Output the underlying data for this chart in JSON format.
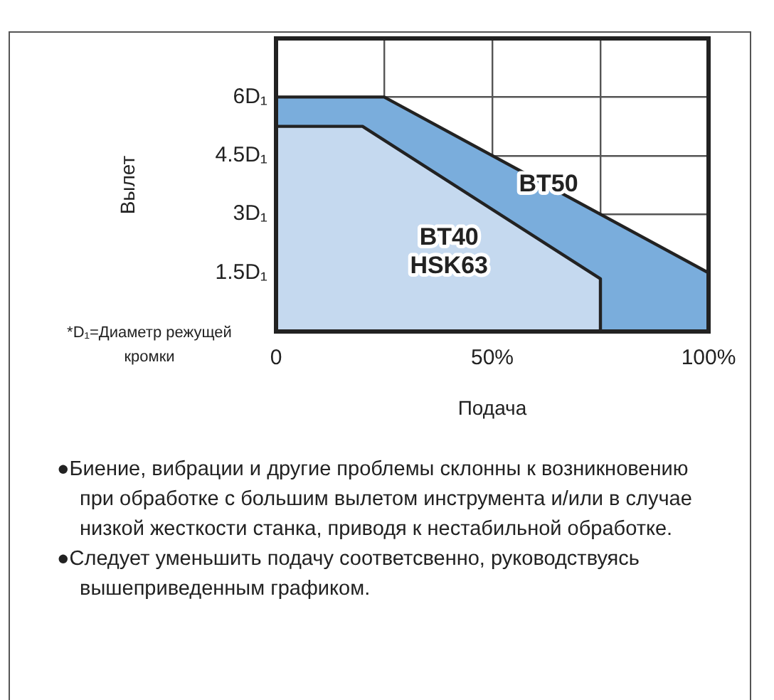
{
  "chart_data": {
    "type": "area",
    "xlabel": "Подача",
    "ylabel": "Вылет",
    "xlim": [
      0,
      100
    ],
    "xticks": [
      0,
      {
        "value": 25,
        "label": null
      },
      {
        "value": 50,
        "label": "50%"
      },
      {
        "value": 75,
        "label": null
      },
      {
        "value": 100,
        "label": "100%"
      }
    ],
    "ylim": [
      0,
      7.5
    ],
    "yticks": [
      {
        "value": 1.5,
        "label": "1.5D₁"
      },
      {
        "value": 3,
        "label": "3D₁"
      },
      {
        "value": 4.5,
        "label": "4.5D₁"
      },
      {
        "value": 6,
        "label": "6D₁"
      }
    ],
    "series": [
      {
        "name": "BT50",
        "color": "#7aaddc",
        "x": [
          0,
          25,
          100
        ],
        "values": [
          6,
          6,
          1.5
        ]
      },
      {
        "name": "BT40 HSK63",
        "color": "#c5d9ef",
        "x": [
          0,
          20,
          75,
          75
        ],
        "values": [
          5.25,
          5.25,
          1.35,
          0
        ]
      }
    ],
    "grid": true,
    "legend": false,
    "marker": "none",
    "annotations": [
      "*D₁=Диаметр режущей кромки",
      "●Биение, вибрации и другие проблемы склонны к возникновению при обработке с большим вылетом инструмента и/или в случае низкой жесткости станка, приводя к нестабильной обработке.",
      "●Следует уменьшить подачу соответсвенно, руководствуясь вышеприведенным графиком."
    ]
  }
}
